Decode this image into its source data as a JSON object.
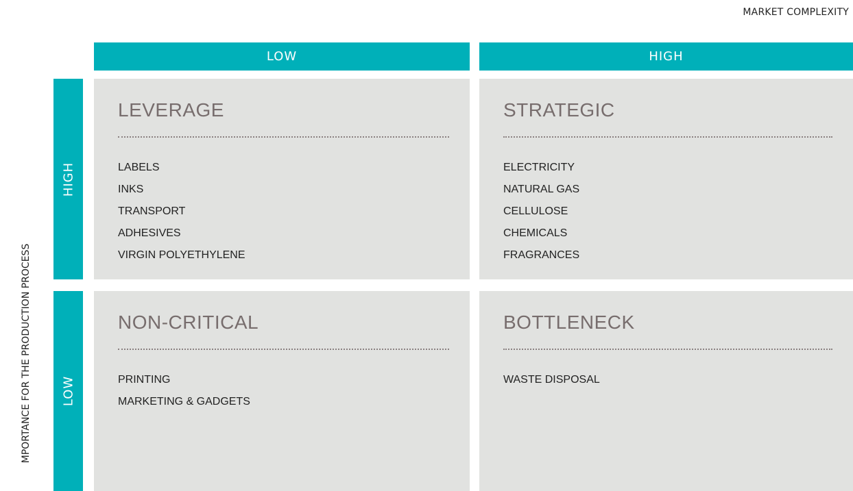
{
  "header": {
    "title": "MARKET COMPLEXITY"
  },
  "y_axis_label": "MPORTANCE FOR THE PRODUCTION PROCESS",
  "columns": [
    "LOW",
    "HIGH"
  ],
  "rows": [
    "HIGH",
    "LOW"
  ],
  "quadrants": [
    {
      "title": "LEVERAGE",
      "items": [
        "LABELS",
        "INKS",
        "TRANSPORT",
        "ADHESIVES",
        "VIRGIN POLYETHYLENE"
      ]
    },
    {
      "title": "STRATEGIC",
      "items": [
        "ELECTRICITY",
        "NATURAL GAS",
        "CELLULOSE",
        "CHEMICALS",
        "FRAGRANCES"
      ]
    },
    {
      "title": "NON-CRITICAL",
      "items": [
        "PRINTING",
        "MARKETING & GADGETS"
      ]
    },
    {
      "title": "BOTTLENECK",
      "items": [
        "WASTE DISPOSAL"
      ]
    }
  ]
}
